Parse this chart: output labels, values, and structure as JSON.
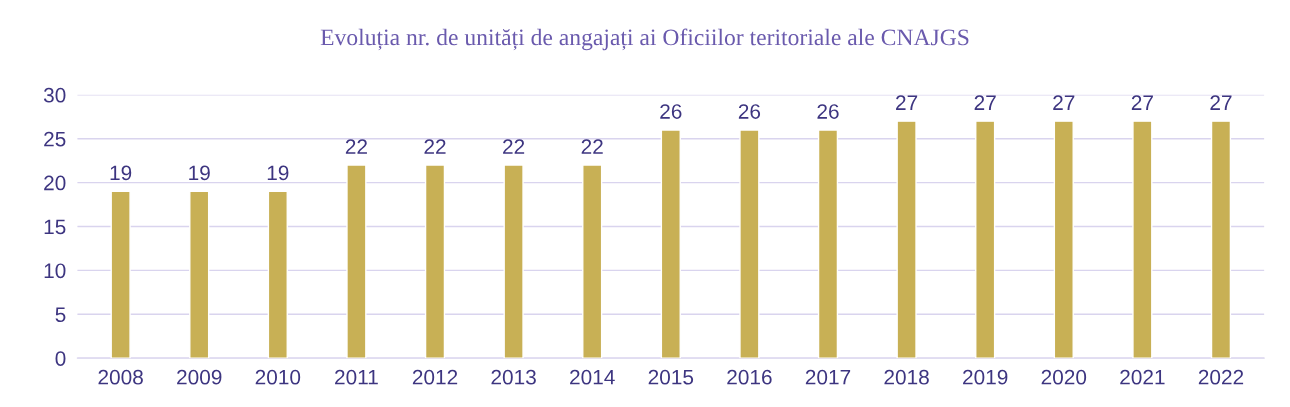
{
  "chart_data": {
    "type": "bar",
    "title": "Evoluția nr. de unități de angajați ai Oficiilor teritoriale ale CNAJGS",
    "categories": [
      "2008",
      "2009",
      "2010",
      "2011",
      "2012",
      "2013",
      "2014",
      "2015",
      "2016",
      "2017",
      "2018",
      "2019",
      "2020",
      "2021",
      "2022"
    ],
    "values": [
      19,
      19,
      19,
      22,
      22,
      22,
      22,
      26,
      26,
      26,
      27,
      27,
      27,
      27,
      27
    ],
    "color": "#c8b055",
    "ylim": [
      0,
      30
    ],
    "yticks": [
      0,
      5,
      10,
      15,
      20,
      25,
      30
    ],
    "grid": "y",
    "data_labels": true,
    "legend": false
  }
}
